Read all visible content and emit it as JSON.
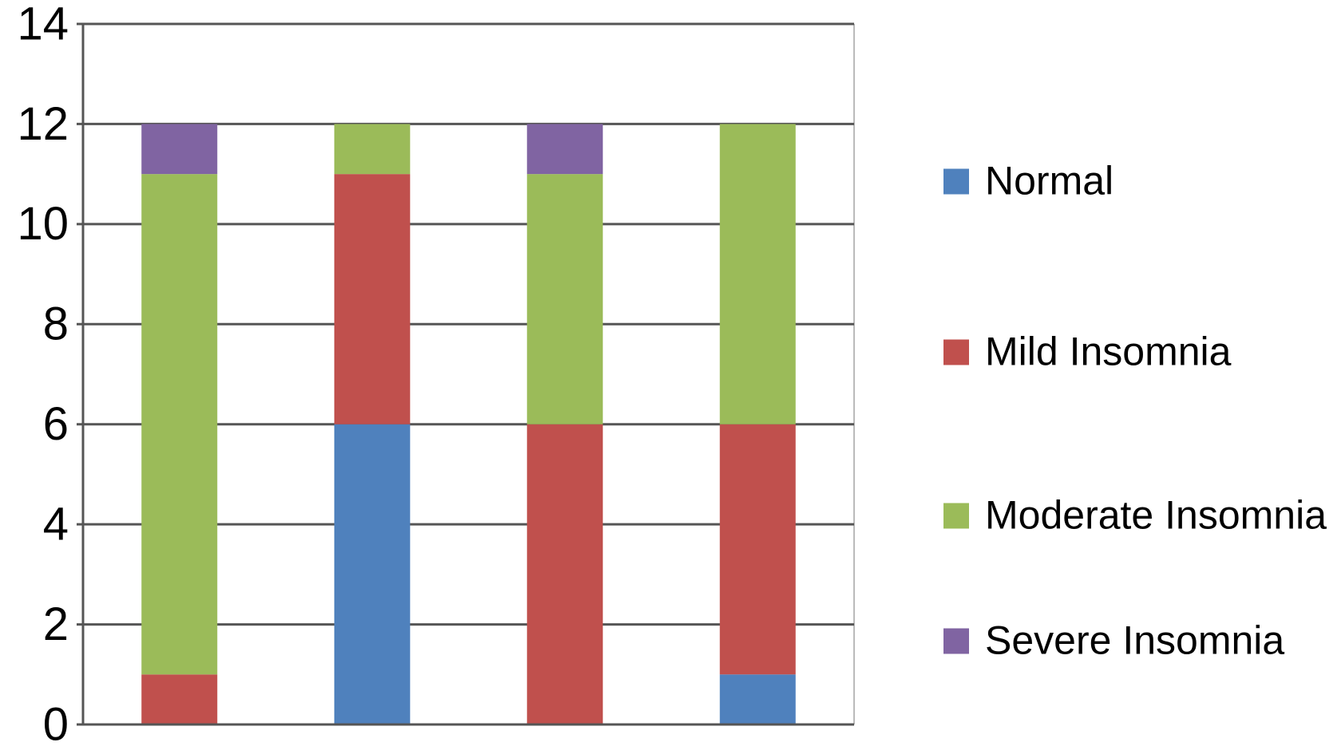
{
  "chart_data": {
    "type": "stacked-bar",
    "categories": [
      null,
      null,
      null,
      null
    ],
    "series": [
      {
        "name": "Normal",
        "color": "#4f81bd",
        "values": [
          0,
          6,
          0,
          1
        ]
      },
      {
        "name": "Mild Insomnia",
        "color": "#c0504d",
        "values": [
          1,
          5,
          6,
          5
        ]
      },
      {
        "name": "Moderate Insomnia",
        "color": "#9bbb59",
        "values": [
          10,
          1,
          5,
          6
        ]
      },
      {
        "name": "Severe Insomnia",
        "color": "#8064a2",
        "values": [
          1,
          0,
          1,
          0
        ]
      }
    ],
    "ylim": [
      0,
      14
    ],
    "yticks": [
      0,
      2,
      4,
      6,
      8,
      10,
      12,
      14
    ],
    "grid": true,
    "legend": "right"
  }
}
